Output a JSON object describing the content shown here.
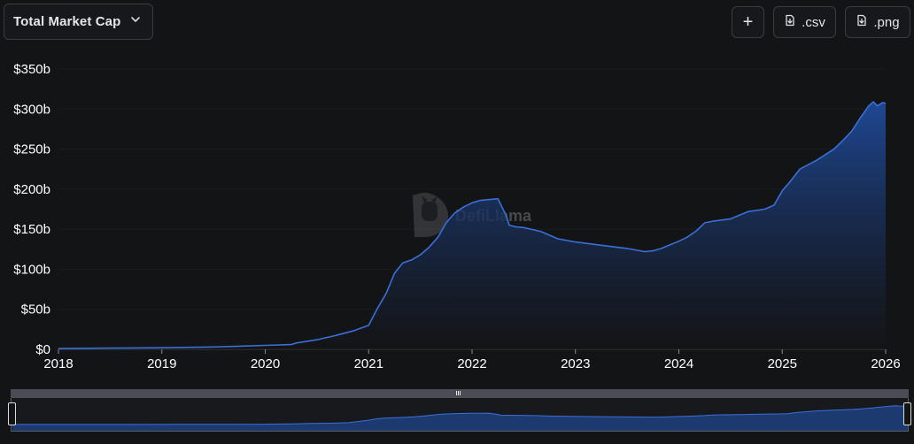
{
  "header": {
    "metric_label": "Total Market Cap",
    "add_label": "+",
    "csv_label": ".csv",
    "png_label": ".png"
  },
  "watermark": {
    "text": "DefiLlama"
  },
  "colors": {
    "background": "#131416",
    "line": "#3b6fd8",
    "area_top": "#1f4a9a",
    "area_bottom": "#131416",
    "grid": "#1c1d21"
  },
  "chart_data": {
    "type": "area",
    "title": "",
    "xlabel": "",
    "ylabel": "",
    "x_ticks": [
      "2018",
      "2019",
      "2020",
      "2021",
      "2022",
      "2023",
      "2024",
      "2025",
      "2026"
    ],
    "y_ticks": [
      "$0",
      "$50b",
      "$100b",
      "$150b",
      "$200b",
      "$250b",
      "$300b",
      "$350b"
    ],
    "ylim": [
      0,
      350
    ],
    "xlim": [
      2018.0,
      2026.0
    ],
    "y_unit": "billion USD",
    "grid": true,
    "series": [
      {
        "x": [
          2018.0,
          2018.5,
          2019.0,
          2019.5,
          2019.75,
          2020.0,
          2020.25,
          2020.3,
          2020.5,
          2020.67,
          2020.85,
          2021.0,
          2021.08,
          2021.17,
          2021.25,
          2021.33,
          2021.42,
          2021.5,
          2021.58,
          2021.67,
          2021.75,
          2021.83,
          2021.92,
          2022.0,
          2022.08,
          2022.17,
          2022.25,
          2022.33,
          2022.36,
          2022.42,
          2022.5,
          2022.67,
          2022.83,
          2023.0,
          2023.25,
          2023.5,
          2023.67,
          2023.75,
          2023.83,
          2024.0,
          2024.08,
          2024.17,
          2024.25,
          2024.33,
          2024.5,
          2024.67,
          2024.83,
          2024.92,
          2025.0,
          2025.08,
          2025.17,
          2025.33,
          2025.5,
          2025.58,
          2025.67,
          2025.75,
          2025.83,
          2025.88,
          2025.92,
          2025.97,
          2026.0
        ],
        "y": [
          1,
          1.5,
          2,
          3,
          4,
          5,
          6,
          8,
          12,
          17,
          23,
          30,
          50,
          70,
          95,
          108,
          112,
          118,
          127,
          140,
          158,
          170,
          178,
          183,
          186,
          187,
          188,
          167,
          155,
          153,
          152,
          147,
          138,
          134,
          130,
          126,
          122,
          123,
          126,
          135,
          140,
          148,
          158,
          160,
          163,
          172,
          175,
          180,
          198,
          210,
          225,
          236,
          250,
          260,
          272,
          288,
          303,
          309,
          304,
          308,
          307
        ]
      }
    ]
  }
}
